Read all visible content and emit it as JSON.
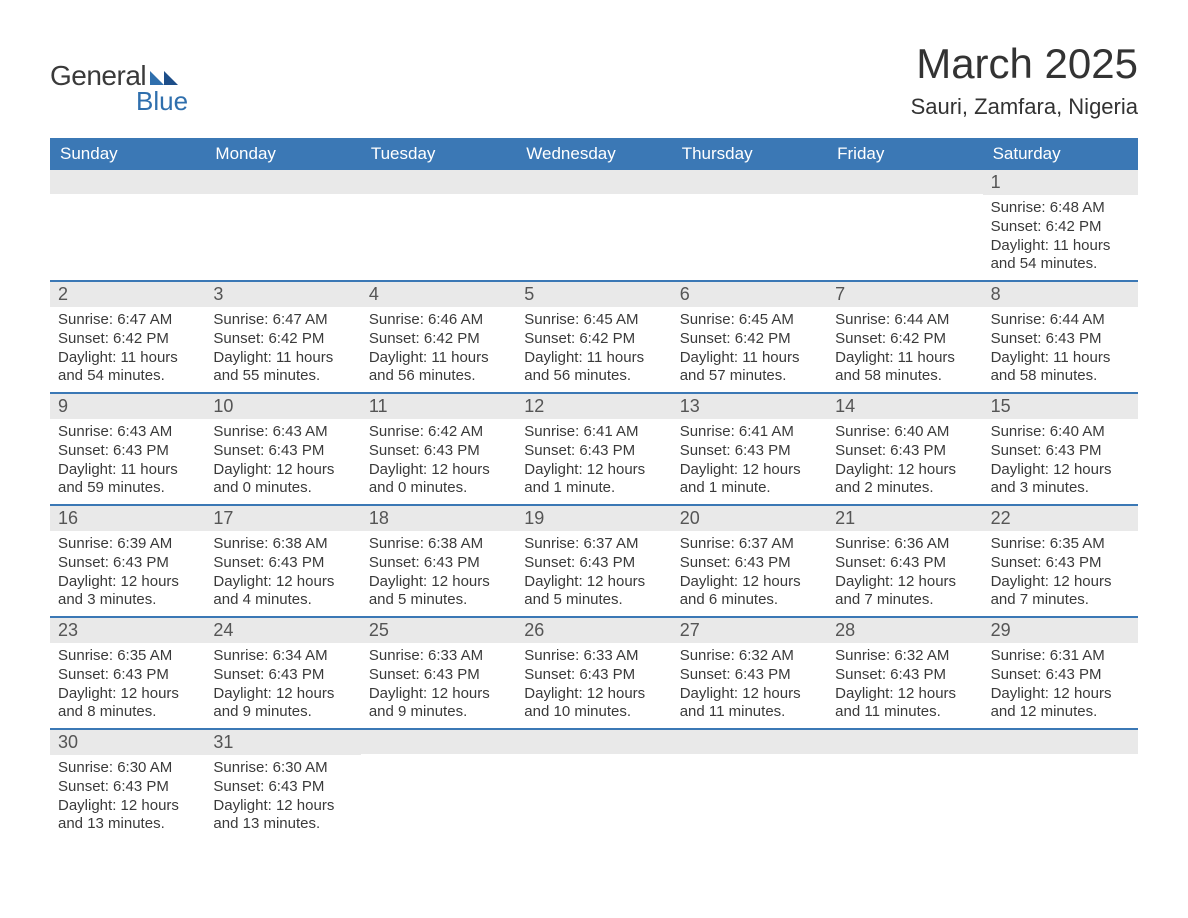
{
  "logo": {
    "text1": "General",
    "text2": "Blue",
    "text_color": "#3a3a3a",
    "accent_color": "#2f6fad"
  },
  "title": "March 2025",
  "location": "Sauri, Zamfara, Nigeria",
  "colors": {
    "header_bg": "#3b78b5",
    "header_text": "#ffffff",
    "daynum_bg": "#e9e9e9",
    "body_text": "#3a3a3a",
    "row_border": "#3b78b5",
    "page_bg": "#ffffff"
  },
  "fonts": {
    "title_size": 42,
    "location_size": 22,
    "weekday_size": 17,
    "daynum_size": 18,
    "body_size": 15
  },
  "weekdays": [
    "Sunday",
    "Monday",
    "Tuesday",
    "Wednesday",
    "Thursday",
    "Friday",
    "Saturday"
  ],
  "weeks": [
    [
      {
        "n": "",
        "lines": []
      },
      {
        "n": "",
        "lines": []
      },
      {
        "n": "",
        "lines": []
      },
      {
        "n": "",
        "lines": []
      },
      {
        "n": "",
        "lines": []
      },
      {
        "n": "",
        "lines": []
      },
      {
        "n": "1",
        "lines": [
          "Sunrise: 6:48 AM",
          "Sunset: 6:42 PM",
          "Daylight: 11 hours and 54 minutes."
        ]
      }
    ],
    [
      {
        "n": "2",
        "lines": [
          "Sunrise: 6:47 AM",
          "Sunset: 6:42 PM",
          "Daylight: 11 hours and 54 minutes."
        ]
      },
      {
        "n": "3",
        "lines": [
          "Sunrise: 6:47 AM",
          "Sunset: 6:42 PM",
          "Daylight: 11 hours and 55 minutes."
        ]
      },
      {
        "n": "4",
        "lines": [
          "Sunrise: 6:46 AM",
          "Sunset: 6:42 PM",
          "Daylight: 11 hours and 56 minutes."
        ]
      },
      {
        "n": "5",
        "lines": [
          "Sunrise: 6:45 AM",
          "Sunset: 6:42 PM",
          "Daylight: 11 hours and 56 minutes."
        ]
      },
      {
        "n": "6",
        "lines": [
          "Sunrise: 6:45 AM",
          "Sunset: 6:42 PM",
          "Daylight: 11 hours and 57 minutes."
        ]
      },
      {
        "n": "7",
        "lines": [
          "Sunrise: 6:44 AM",
          "Sunset: 6:42 PM",
          "Daylight: 11 hours and 58 minutes."
        ]
      },
      {
        "n": "8",
        "lines": [
          "Sunrise: 6:44 AM",
          "Sunset: 6:43 PM",
          "Daylight: 11 hours and 58 minutes."
        ]
      }
    ],
    [
      {
        "n": "9",
        "lines": [
          "Sunrise: 6:43 AM",
          "Sunset: 6:43 PM",
          "Daylight: 11 hours and 59 minutes."
        ]
      },
      {
        "n": "10",
        "lines": [
          "Sunrise: 6:43 AM",
          "Sunset: 6:43 PM",
          "Daylight: 12 hours and 0 minutes."
        ]
      },
      {
        "n": "11",
        "lines": [
          "Sunrise: 6:42 AM",
          "Sunset: 6:43 PM",
          "Daylight: 12 hours and 0 minutes."
        ]
      },
      {
        "n": "12",
        "lines": [
          "Sunrise: 6:41 AM",
          "Sunset: 6:43 PM",
          "Daylight: 12 hours and 1 minute."
        ]
      },
      {
        "n": "13",
        "lines": [
          "Sunrise: 6:41 AM",
          "Sunset: 6:43 PM",
          "Daylight: 12 hours and 1 minute."
        ]
      },
      {
        "n": "14",
        "lines": [
          "Sunrise: 6:40 AM",
          "Sunset: 6:43 PM",
          "Daylight: 12 hours and 2 minutes."
        ]
      },
      {
        "n": "15",
        "lines": [
          "Sunrise: 6:40 AM",
          "Sunset: 6:43 PM",
          "Daylight: 12 hours and 3 minutes."
        ]
      }
    ],
    [
      {
        "n": "16",
        "lines": [
          "Sunrise: 6:39 AM",
          "Sunset: 6:43 PM",
          "Daylight: 12 hours and 3 minutes."
        ]
      },
      {
        "n": "17",
        "lines": [
          "Sunrise: 6:38 AM",
          "Sunset: 6:43 PM",
          "Daylight: 12 hours and 4 minutes."
        ]
      },
      {
        "n": "18",
        "lines": [
          "Sunrise: 6:38 AM",
          "Sunset: 6:43 PM",
          "Daylight: 12 hours and 5 minutes."
        ]
      },
      {
        "n": "19",
        "lines": [
          "Sunrise: 6:37 AM",
          "Sunset: 6:43 PM",
          "Daylight: 12 hours and 5 minutes."
        ]
      },
      {
        "n": "20",
        "lines": [
          "Sunrise: 6:37 AM",
          "Sunset: 6:43 PM",
          "Daylight: 12 hours and 6 minutes."
        ]
      },
      {
        "n": "21",
        "lines": [
          "Sunrise: 6:36 AM",
          "Sunset: 6:43 PM",
          "Daylight: 12 hours and 7 minutes."
        ]
      },
      {
        "n": "22",
        "lines": [
          "Sunrise: 6:35 AM",
          "Sunset: 6:43 PM",
          "Daylight: 12 hours and 7 minutes."
        ]
      }
    ],
    [
      {
        "n": "23",
        "lines": [
          "Sunrise: 6:35 AM",
          "Sunset: 6:43 PM",
          "Daylight: 12 hours and 8 minutes."
        ]
      },
      {
        "n": "24",
        "lines": [
          "Sunrise: 6:34 AM",
          "Sunset: 6:43 PM",
          "Daylight: 12 hours and 9 minutes."
        ]
      },
      {
        "n": "25",
        "lines": [
          "Sunrise: 6:33 AM",
          "Sunset: 6:43 PM",
          "Daylight: 12 hours and 9 minutes."
        ]
      },
      {
        "n": "26",
        "lines": [
          "Sunrise: 6:33 AM",
          "Sunset: 6:43 PM",
          "Daylight: 12 hours and 10 minutes."
        ]
      },
      {
        "n": "27",
        "lines": [
          "Sunrise: 6:32 AM",
          "Sunset: 6:43 PM",
          "Daylight: 12 hours and 11 minutes."
        ]
      },
      {
        "n": "28",
        "lines": [
          "Sunrise: 6:32 AM",
          "Sunset: 6:43 PM",
          "Daylight: 12 hours and 11 minutes."
        ]
      },
      {
        "n": "29",
        "lines": [
          "Sunrise: 6:31 AM",
          "Sunset: 6:43 PM",
          "Daylight: 12 hours and 12 minutes."
        ]
      }
    ],
    [
      {
        "n": "30",
        "lines": [
          "Sunrise: 6:30 AM",
          "Sunset: 6:43 PM",
          "Daylight: 12 hours and 13 minutes."
        ]
      },
      {
        "n": "31",
        "lines": [
          "Sunrise: 6:30 AM",
          "Sunset: 6:43 PM",
          "Daylight: 12 hours and 13 minutes."
        ]
      },
      {
        "n": "",
        "lines": []
      },
      {
        "n": "",
        "lines": []
      },
      {
        "n": "",
        "lines": []
      },
      {
        "n": "",
        "lines": []
      },
      {
        "n": "",
        "lines": []
      }
    ]
  ]
}
